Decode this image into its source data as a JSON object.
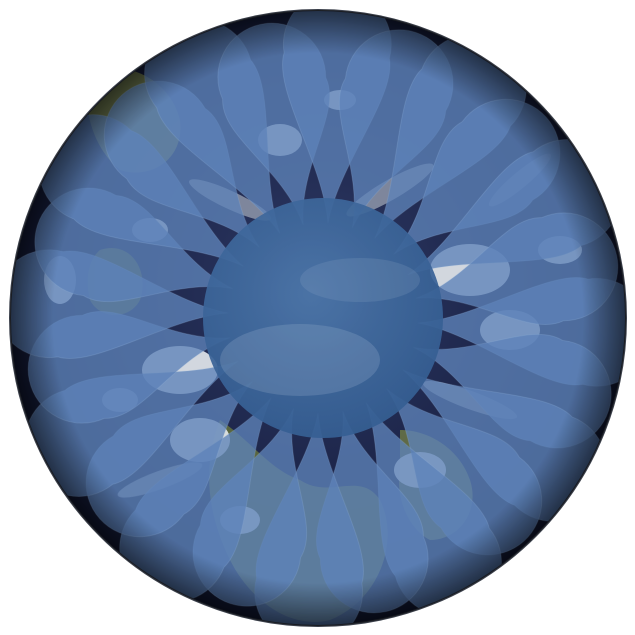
{
  "image": {
    "subject": "earth-globe-with-flower-overlay",
    "colors": {
      "background": "#ffffff",
      "ocean_dark": "#151d3a",
      "ocean_mid": "#2a3560",
      "land": "#5d6b3c",
      "cloud": "#e8ecef",
      "petal": "#5d83b8",
      "petal_opacity": "0.78",
      "center_disc": "#3f6a9e"
    },
    "petal_count": 24
  }
}
